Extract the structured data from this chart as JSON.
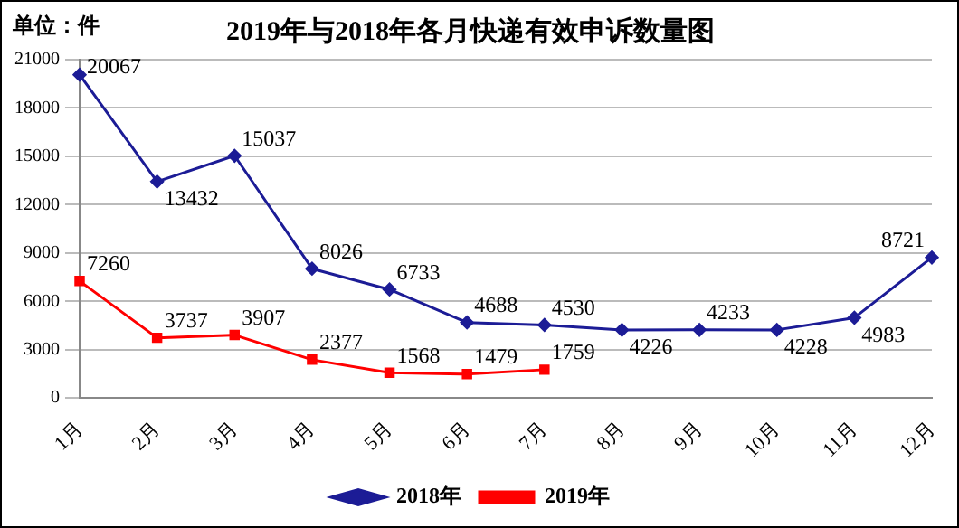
{
  "chart_data": {
    "type": "line",
    "title": "2019年与2018年各月快递有效申诉数量图",
    "annotations": [
      "单位：件"
    ],
    "categories": [
      "1月",
      "2月",
      "3月",
      "4月",
      "5月",
      "6月",
      "7月",
      "8月",
      "9月",
      "10月",
      "11月",
      "12月"
    ],
    "series": [
      {
        "name": "2018年",
        "color": "#1c1c96",
        "marker": "diamond",
        "values": [
          20067,
          13432,
          15037,
          8026,
          6733,
          4688,
          4530,
          4226,
          4233,
          4228,
          4983,
          8721
        ]
      },
      {
        "name": "2019年",
        "color": "#ff0000",
        "marker": "square",
        "values": [
          7260,
          3737,
          3907,
          2377,
          1568,
          1479,
          1759,
          null,
          null,
          null,
          null,
          null
        ]
      }
    ],
    "ylim": [
      0,
      21000
    ],
    "yticks": [
      0,
      3000,
      6000,
      9000,
      12000,
      15000,
      18000,
      21000
    ],
    "grid": "y",
    "legend": "bottom",
    "data_labels": true,
    "line_style": "solid"
  }
}
